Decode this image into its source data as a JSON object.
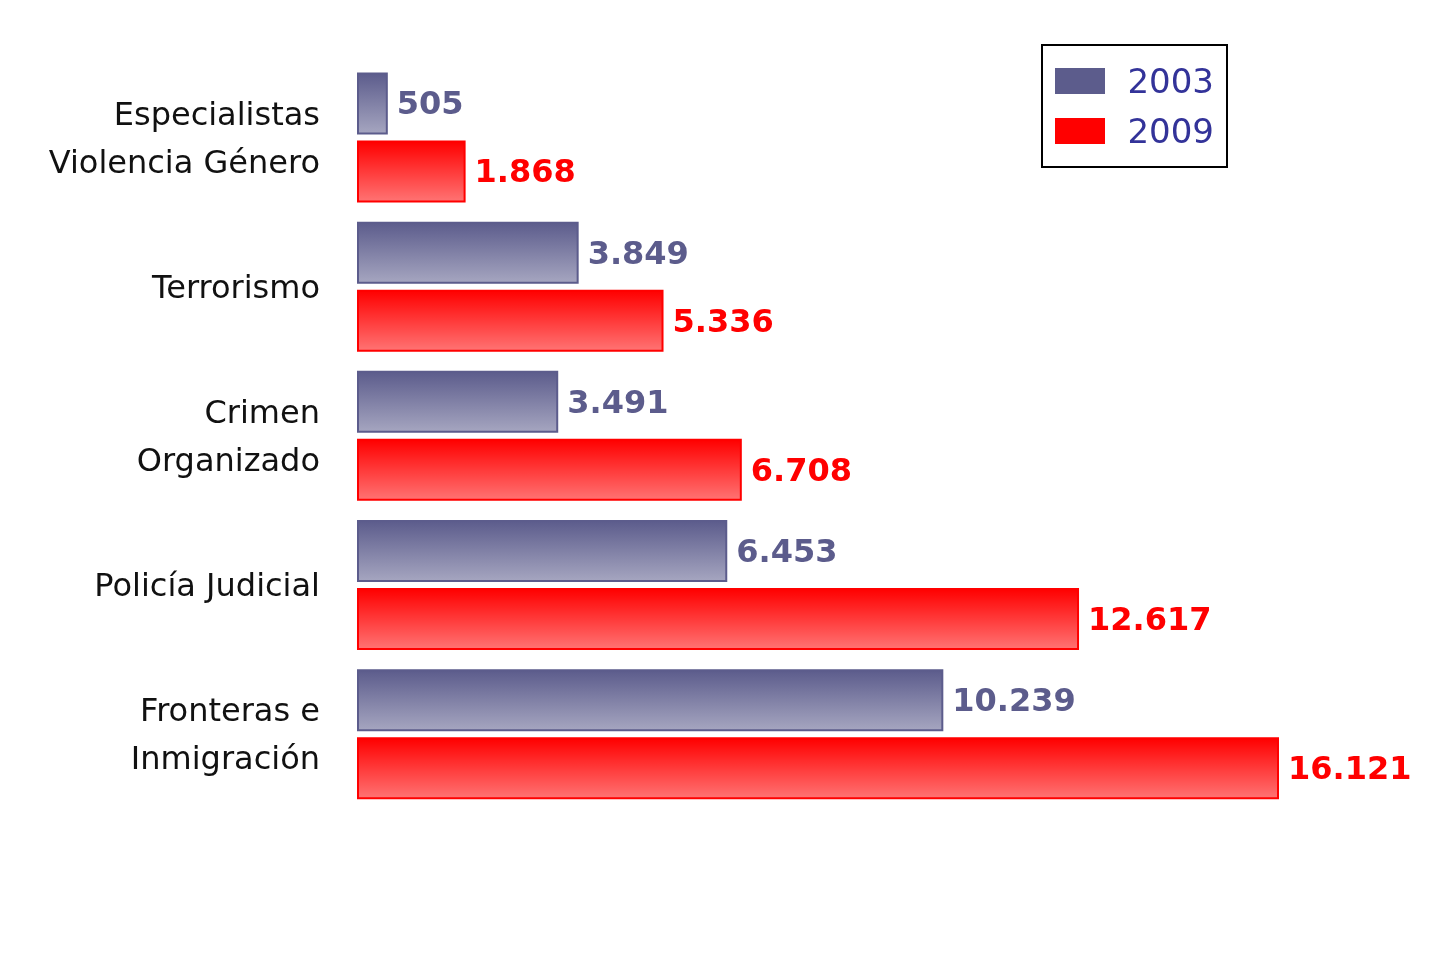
{
  "chart_data": {
    "type": "bar",
    "orientation": "horizontal",
    "categories": [
      "Especialistas Violencia Género",
      "Terrorismo",
      "Crimen Organizado",
      "Policía Judicial",
      "Fronteras e Inmigración"
    ],
    "series": [
      {
        "name": "2003",
        "color": "#5c5c8c",
        "values": [
          505,
          3849,
          3491,
          6453,
          10239
        ],
        "value_labels": [
          "505",
          "3.849",
          "3.491",
          "6.453",
          "10.239"
        ]
      },
      {
        "name": "2009",
        "color": "#ff0000",
        "values": [
          1868,
          5336,
          6708,
          12617,
          16121
        ],
        "value_labels": [
          "1.868",
          "5.336",
          "6.708",
          "12.617",
          "16.121"
        ]
      }
    ],
    "legend": "top right",
    "grid": false
  }
}
